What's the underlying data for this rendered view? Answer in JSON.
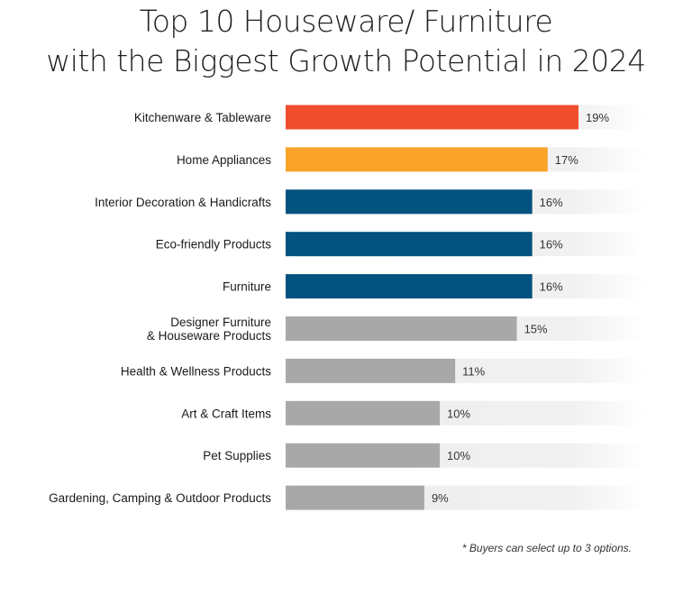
{
  "chart_data": {
    "type": "bar",
    "orientation": "horizontal",
    "title": [
      "Top 10 Houseware/ Furniture",
      "with the Biggest Growth Potential in 2024"
    ],
    "categories": [
      "Kitchenware & Tableware",
      "Home Appliances",
      "Interior Decoration & Handicrafts",
      "Eco-friendly Products",
      "Furniture",
      "Designer Furniture\n& Houseware Products",
      "Health & Wellness Products",
      "Art & Craft Items",
      "Pet Supplies",
      "Gardening, Camping & Outdoor Products"
    ],
    "values": [
      19,
      17,
      16,
      16,
      16,
      15,
      11,
      10,
      10,
      9
    ],
    "value_labels": [
      "19%",
      "17%",
      "16%",
      "16%",
      "16%",
      "15%",
      "11%",
      "10%",
      "10%",
      "9%"
    ],
    "colors": [
      "#f04e2f",
      "#f9a32b",
      "#03527f",
      "#03527f",
      "#03527f",
      "#a8a8a8",
      "#a8a8a8",
      "#a8a8a8",
      "#a8a8a8",
      "#a8a8a8"
    ],
    "track_color": "#eeeeee",
    "grid": false,
    "legend": "none"
  },
  "footnote": "* Buyers can select up to 3 options."
}
